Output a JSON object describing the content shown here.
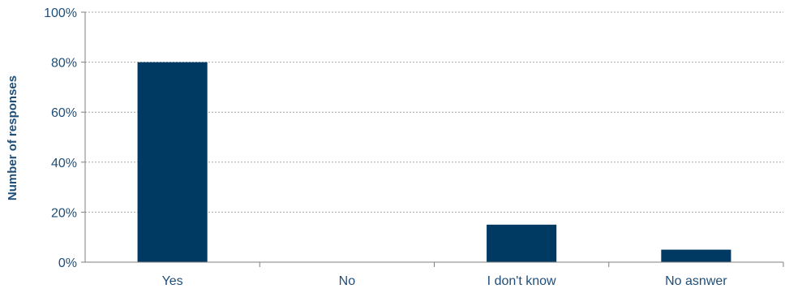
{
  "chart_data": {
    "type": "bar",
    "title": "",
    "xlabel": "",
    "ylabel": "Number of responses",
    "categories": [
      "Yes",
      "No",
      "I don't know",
      "No asnwer"
    ],
    "values": [
      80,
      0,
      15,
      5
    ],
    "ylim": [
      0,
      100
    ],
    "y_ticks": [
      0,
      20,
      40,
      60,
      80,
      100
    ],
    "y_tick_labels": [
      "0%",
      "20%",
      "40%",
      "60%",
      "80%",
      "100%"
    ],
    "grid": true,
    "legend": "none",
    "colors": {
      "bar": "#003a63",
      "grid": "#a6a6a6",
      "axis": "#7f7f7f",
      "text": "#1f4e79"
    }
  }
}
